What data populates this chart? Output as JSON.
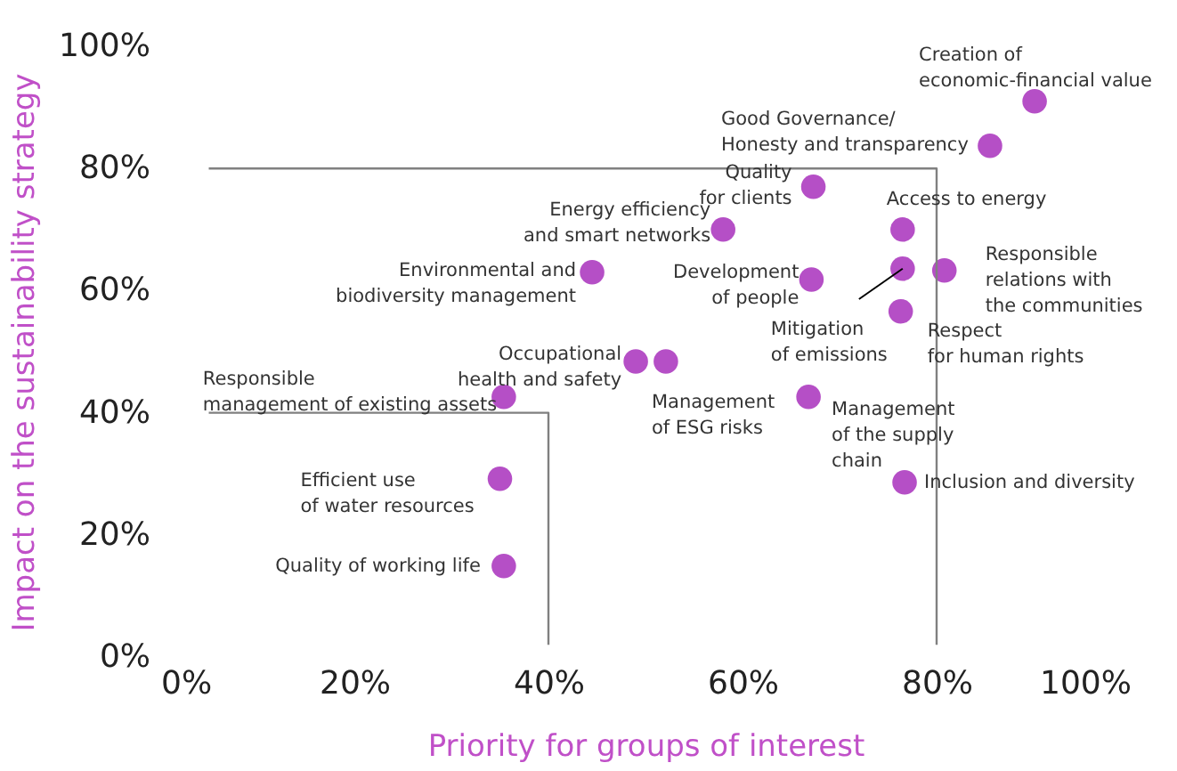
{
  "chart_data": {
    "type": "scatter",
    "xlabel": "Priority for groups of interest",
    "ylabel": "Impact on the sustainability strategy",
    "xlim": [
      0,
      100
    ],
    "ylim": [
      0,
      100
    ],
    "xticks": [
      {
        "value": 0,
        "label": "0%"
      },
      {
        "value": 20,
        "label": "20%"
      },
      {
        "value": 40,
        "label": "40%"
      },
      {
        "value": 60,
        "label": "60%"
      },
      {
        "value": 80,
        "label": "80%"
      },
      {
        "value": 100,
        "label": "100%"
      }
    ],
    "yticks": [
      {
        "value": 0,
        "label": "0%"
      },
      {
        "value": 20,
        "label": "20%"
      },
      {
        "value": 40,
        "label": "40%"
      },
      {
        "value": 60,
        "label": "60%"
      },
      {
        "value": 80,
        "label": "80%"
      },
      {
        "value": 100,
        "label": "100%"
      }
    ],
    "grid": false,
    "marker": "circle",
    "series": [
      {
        "color": "#b54fc6",
        "x": [
          90.1,
          85.5,
          67.3,
          58.0,
          76.5,
          44.5,
          67.1,
          76.5,
          80.8,
          76.3,
          49.0,
          52.1,
          35.4,
          66.8,
          35.0,
          76.7,
          35.4
        ],
        "values": [
          91.0,
          83.7,
          77.0,
          70.0,
          70.0,
          63.0,
          61.8,
          63.6,
          63.3,
          56.6,
          48.4,
          48.4,
          42.6,
          42.6,
          29.2,
          28.6,
          14.9
        ]
      },
      {
        "type": "line",
        "marker": "none",
        "color": "#808080",
        "x": [
          5,
          80,
          80
        ],
        "values": [
          80,
          80,
          2
        ]
      },
      {
        "type": "line",
        "marker": "none",
        "color": "#808080",
        "x": [
          5,
          40,
          40
        ],
        "values": [
          40,
          40,
          2
        ]
      }
    ],
    "annotations": [
      {
        "text": "Creation of\neconomic-financial value",
        "x": 90.1,
        "y": 91.0
      },
      {
        "text": "Good Governance/\nHonesty and transparency",
        "x": 85.5,
        "y": 83.7
      },
      {
        "text": "Quality\nfor clients",
        "x": 67.3,
        "y": 77.0
      },
      {
        "text": "Energy efficiency\nand smart networks",
        "x": 58.0,
        "y": 70.0
      },
      {
        "text": "Access to energy",
        "x": 76.5,
        "y": 70.0
      },
      {
        "text": "Environmental and\nbiodiversity management",
        "x": 44.5,
        "y": 63.0
      },
      {
        "text": "Development\nof people",
        "x": 67.1,
        "y": 61.8
      },
      {
        "text": "Mitigation\nof emissions",
        "x": 76.5,
        "y": 63.6
      },
      {
        "text": "Responsible\nrelations with\nthe communities",
        "x": 80.8,
        "y": 63.3
      },
      {
        "text": "Respect\nfor human rights",
        "x": 76.3,
        "y": 56.6
      },
      {
        "text": "Occupational\nhealth and safety",
        "x": 49.0,
        "y": 48.4
      },
      {
        "text": "Management\nof ESG risks",
        "x": 52.1,
        "y": 48.4
      },
      {
        "text": "Responsible\nmanagement of existing assets",
        "x": 35.4,
        "y": 42.6
      },
      {
        "text": "Management\nof the supply\nchain",
        "x": 66.8,
        "y": 42.6
      },
      {
        "text": "Efficient use\nof water resources",
        "x": 35.0,
        "y": 29.2
      },
      {
        "text": "Inclusion and diversity",
        "x": 76.7,
        "y": 28.6
      },
      {
        "text": "Quality of working life",
        "x": 35.4,
        "y": 14.9
      }
    ]
  }
}
